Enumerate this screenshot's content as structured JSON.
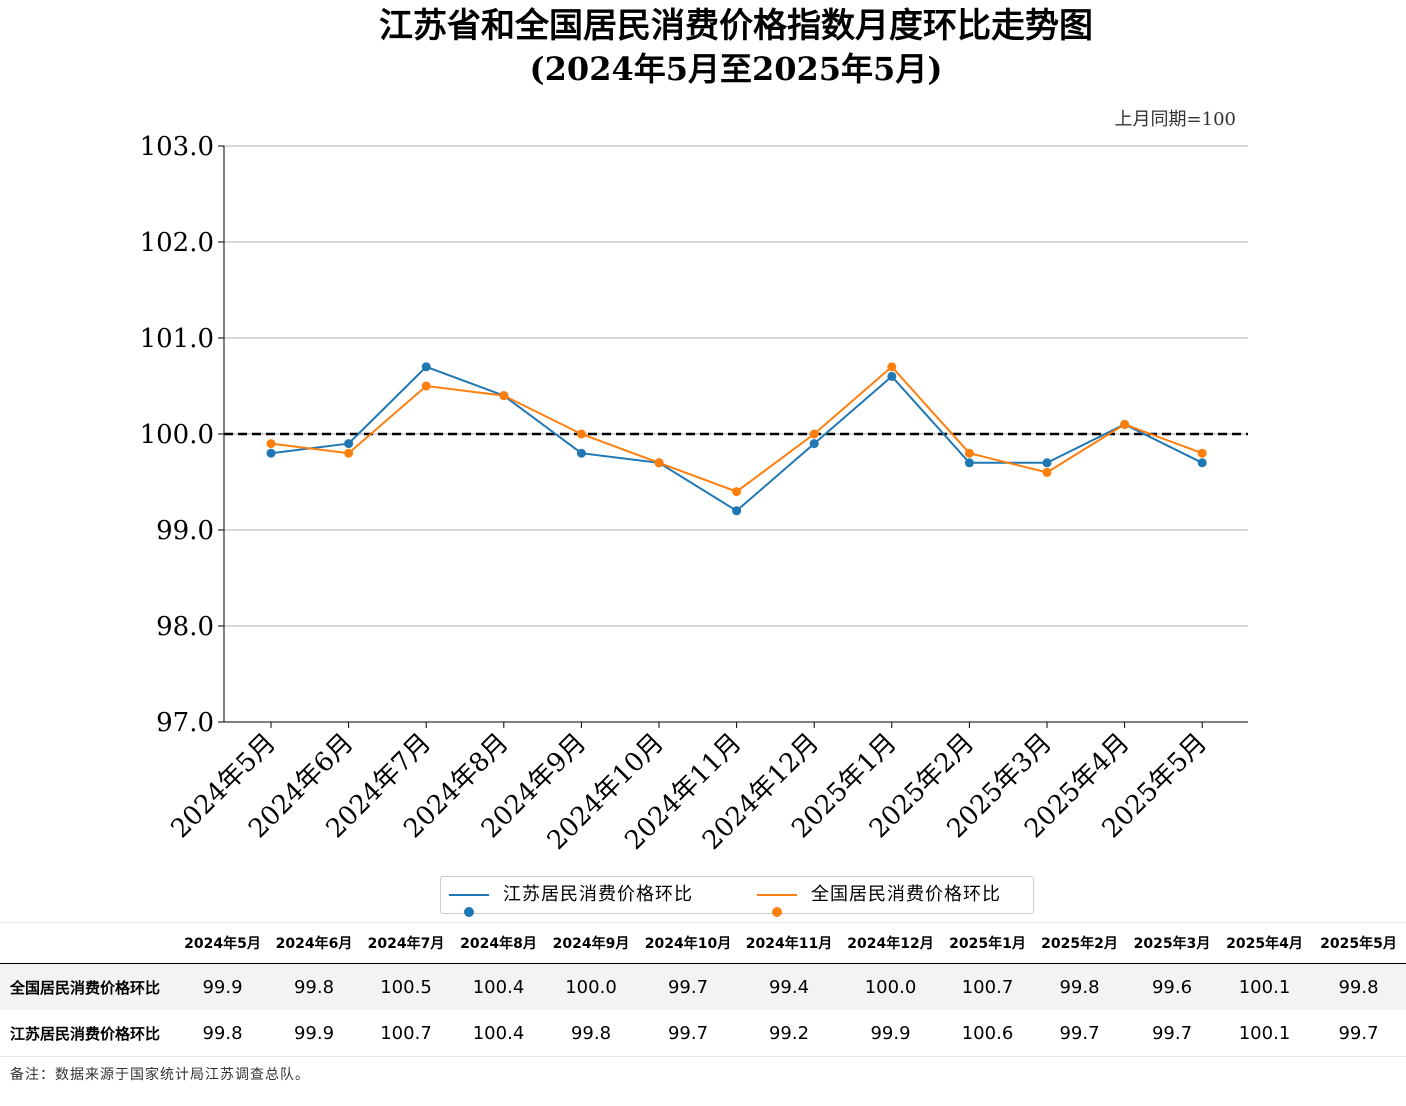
{
  "title": "江苏省和全国居民消费价格指数月度环比走势图",
  "subtitle": "(2024年5月至2025年5月)",
  "base_note": "上月同期=100",
  "footnote": "备注：数据来源于国家统计局江苏调查总队。",
  "colors": {
    "jiangsu": "#1f77b4",
    "national": "#ff7f0e",
    "reference": "#000000",
    "grid": "#b0b0b0"
  },
  "chart_data": {
    "type": "line",
    "categories": [
      "2024年5月",
      "2024年6月",
      "2024年7月",
      "2024年8月",
      "2024年9月",
      "2024年10月",
      "2024年11月",
      "2024年12月",
      "2025年1月",
      "2025年2月",
      "2025年3月",
      "2025年4月",
      "2025年5月"
    ],
    "series": [
      {
        "name": "江苏居民消费价格环比",
        "color": "#1f77b4",
        "values": [
          99.8,
          99.9,
          100.7,
          100.4,
          99.8,
          99.7,
          99.2,
          99.9,
          100.6,
          99.7,
          99.7,
          100.1,
          99.7
        ]
      },
      {
        "name": "全国居民消费价格环比",
        "color": "#ff7f0e",
        "values": [
          99.9,
          99.8,
          100.5,
          100.4,
          100.0,
          99.7,
          99.4,
          100.0,
          100.7,
          99.8,
          99.6,
          100.1,
          99.8
        ]
      }
    ],
    "ylim": [
      97.0,
      103.0
    ],
    "yticks": [
      "97.0",
      "98.0",
      "99.0",
      "100.0",
      "101.0",
      "102.0",
      "103.0"
    ],
    "reference_line": 100.0,
    "grid": "horizontal",
    "legend": "bottom-center"
  },
  "table": {
    "columns": [
      "2024年5月",
      "2024年6月",
      "2024年7月",
      "2024年8月",
      "2024年9月",
      "2024年10月",
      "2024年11月",
      "2024年12月",
      "2025年1月",
      "2025年2月",
      "2025年3月",
      "2025年4月",
      "2025年5月"
    ],
    "rows": [
      {
        "label": "全国居民消费价格环比",
        "values": [
          "99.9",
          "99.8",
          "100.5",
          "100.4",
          "100.0",
          "99.7",
          "99.4",
          "100.0",
          "100.7",
          "99.8",
          "99.6",
          "100.1",
          "99.8"
        ]
      },
      {
        "label": "江苏居民消费价格环比",
        "values": [
          "99.8",
          "99.9",
          "100.7",
          "100.4",
          "99.8",
          "99.7",
          "99.2",
          "99.9",
          "100.6",
          "99.7",
          "99.7",
          "100.1",
          "99.7"
        ]
      }
    ]
  }
}
